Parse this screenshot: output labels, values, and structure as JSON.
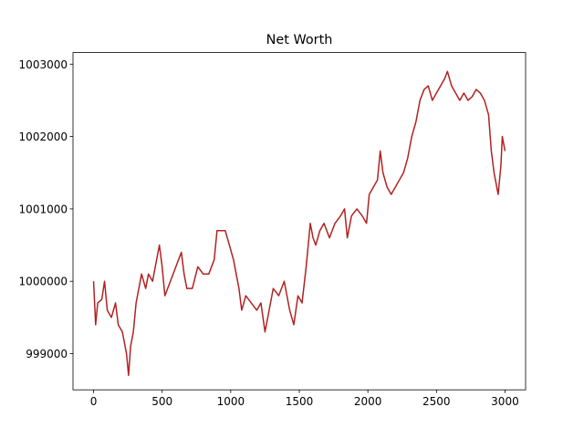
{
  "chart_data": {
    "type": "line",
    "title": "Net Worth",
    "x": [
      0,
      15,
      30,
      60,
      80,
      100,
      130,
      160,
      180,
      210,
      240,
      255,
      270,
      290,
      310,
      330,
      350,
      380,
      400,
      430,
      450,
      480,
      500,
      520,
      560,
      600,
      640,
      660,
      680,
      720,
      760,
      800,
      840,
      880,
      900,
      930,
      960,
      990,
      1020,
      1060,
      1080,
      1110,
      1150,
      1190,
      1220,
      1250,
      1280,
      1310,
      1350,
      1390,
      1430,
      1460,
      1490,
      1520,
      1550,
      1580,
      1600,
      1620,
      1650,
      1680,
      1720,
      1760,
      1800,
      1830,
      1850,
      1880,
      1920,
      1960,
      1990,
      2010,
      2040,
      2070,
      2090,
      2110,
      2140,
      2170,
      2200,
      2230,
      2260,
      2290,
      2320,
      2350,
      2380,
      2410,
      2440,
      2470,
      2500,
      2530,
      2560,
      2580,
      2610,
      2640,
      2670,
      2700,
      2730,
      2760,
      2790,
      2820,
      2850,
      2880,
      2900,
      2920,
      2950,
      2970,
      2980,
      3000
    ],
    "series": [
      {
        "name": "Net Worth",
        "color": "#b22222",
        "values": [
          1000000,
          999400,
          999700,
          999750,
          1000000,
          999600,
          999500,
          999700,
          999400,
          999300,
          999000,
          998700,
          999100,
          999300,
          999700,
          999900,
          1000100,
          999900,
          1000100,
          1000000,
          1000200,
          1000500,
          1000200,
          999800,
          1000000,
          1000200,
          1000400,
          1000100,
          999900,
          999900,
          1000200,
          1000100,
          1000100,
          1000300,
          1000700,
          1000700,
          1000700,
          1000500,
          1000300,
          999900,
          999600,
          999800,
          999700,
          999600,
          999700,
          999300,
          999600,
          999900,
          999800,
          1000000,
          999600,
          999400,
          999800,
          999700,
          1000200,
          1000800,
          1000600,
          1000500,
          1000700,
          1000800,
          1000600,
          1000800,
          1000900,
          1001000,
          1000600,
          1000900,
          1001000,
          1000900,
          1000800,
          1001200,
          1001300,
          1001400,
          1001800,
          1001500,
          1001300,
          1001200,
          1001300,
          1001400,
          1001500,
          1001700,
          1002000,
          1002200,
          1002500,
          1002650,
          1002700,
          1002500,
          1002600,
          1002700,
          1002800,
          1002900,
          1002700,
          1002600,
          1002500,
          1002600,
          1002500,
          1002550,
          1002650,
          1002600,
          1002500,
          1002300,
          1001800,
          1001500,
          1001200,
          1001600,
          1002000,
          1001800
        ]
      }
    ],
    "xlim": [
      -150,
      3150
    ],
    "xticks": [
      0,
      500,
      1000,
      1500,
      2000,
      2500,
      3000
    ],
    "ylim": [
      998500,
      1003160
    ],
    "yticks": [
      999000,
      1000000,
      1001000,
      1002000,
      1003000
    ]
  }
}
